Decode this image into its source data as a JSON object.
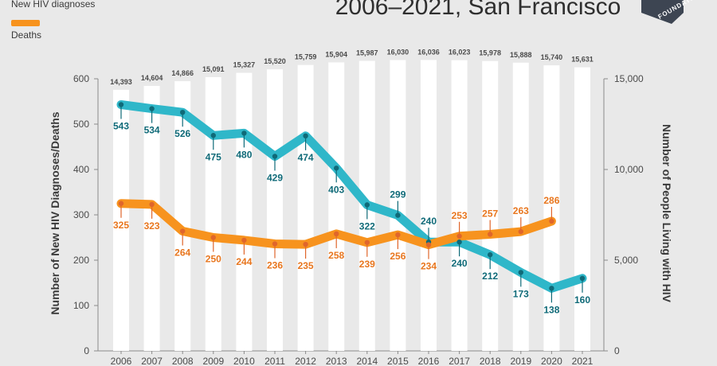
{
  "header": {
    "title": "2006–2021, San Francisco",
    "logo_text": "FOUNDATI"
  },
  "legend": {
    "items": [
      {
        "label": "New HIV diagnoses",
        "color": "#2fb7c9"
      },
      {
        "label": "Deaths",
        "color": "#f7931e"
      }
    ]
  },
  "chart_data": {
    "type": "bar+line",
    "categories": [
      "2006",
      "2007",
      "2008",
      "2009",
      "2010",
      "2011",
      "2012",
      "2013",
      "2014",
      "2015",
      "2016",
      "2017",
      "2018",
      "2019",
      "2020",
      "2021"
    ],
    "bars": {
      "axis": "right",
      "values": [
        14393,
        14604,
        14866,
        15091,
        15327,
        15520,
        15759,
        15904,
        15987,
        16030,
        16036,
        16023,
        15978,
        15888,
        15740,
        15631
      ],
      "labels": [
        "14,393",
        "14,604",
        "14,866",
        "15,091",
        "15,327",
        "15,520",
        "15,759",
        "15,904",
        "15,987",
        "16,030",
        "16,036",
        "16,023",
        "15,978",
        "15,888",
        "15,740",
        "15,631"
      ],
      "color": "#ffffff"
    },
    "series": [
      {
        "name": "New HIV diagnoses",
        "axis": "left",
        "color": "#2fb7c9",
        "marker_color": "#0f6a78",
        "values": [
          543,
          534,
          526,
          475,
          480,
          429,
          474,
          403,
          322,
          299,
          240,
          240,
          212,
          173,
          138,
          160
        ],
        "label_side": [
          "below",
          "below",
          "below",
          "below",
          "below",
          "below",
          "below",
          "below",
          "below",
          "above",
          "above",
          "below",
          "below",
          "below",
          "below",
          "below"
        ]
      },
      {
        "name": "Deaths",
        "axis": "left",
        "color": "#f7931e",
        "marker_color": "#e0662b",
        "values": [
          325,
          323,
          264,
          250,
          244,
          236,
          235,
          258,
          239,
          256,
          234,
          253,
          257,
          263,
          286,
          null
        ],
        "label_side": [
          "below",
          "below",
          "below",
          "below",
          "below",
          "below",
          "below",
          "below",
          "below",
          "below",
          "below",
          "above",
          "above",
          "above",
          "above",
          "below"
        ]
      }
    ],
    "left_axis": {
      "title": "Number of New HIV Diagnoses/Deaths",
      "range": [
        0,
        600
      ],
      "ticks": [
        "0",
        "100",
        "200",
        "300",
        "400",
        "500",
        "600"
      ]
    },
    "right_axis": {
      "title": "Number of People Living with HIV",
      "range": [
        0,
        15000
      ],
      "ticks": [
        "0",
        "5,000",
        "10,000",
        "15,000"
      ]
    }
  }
}
